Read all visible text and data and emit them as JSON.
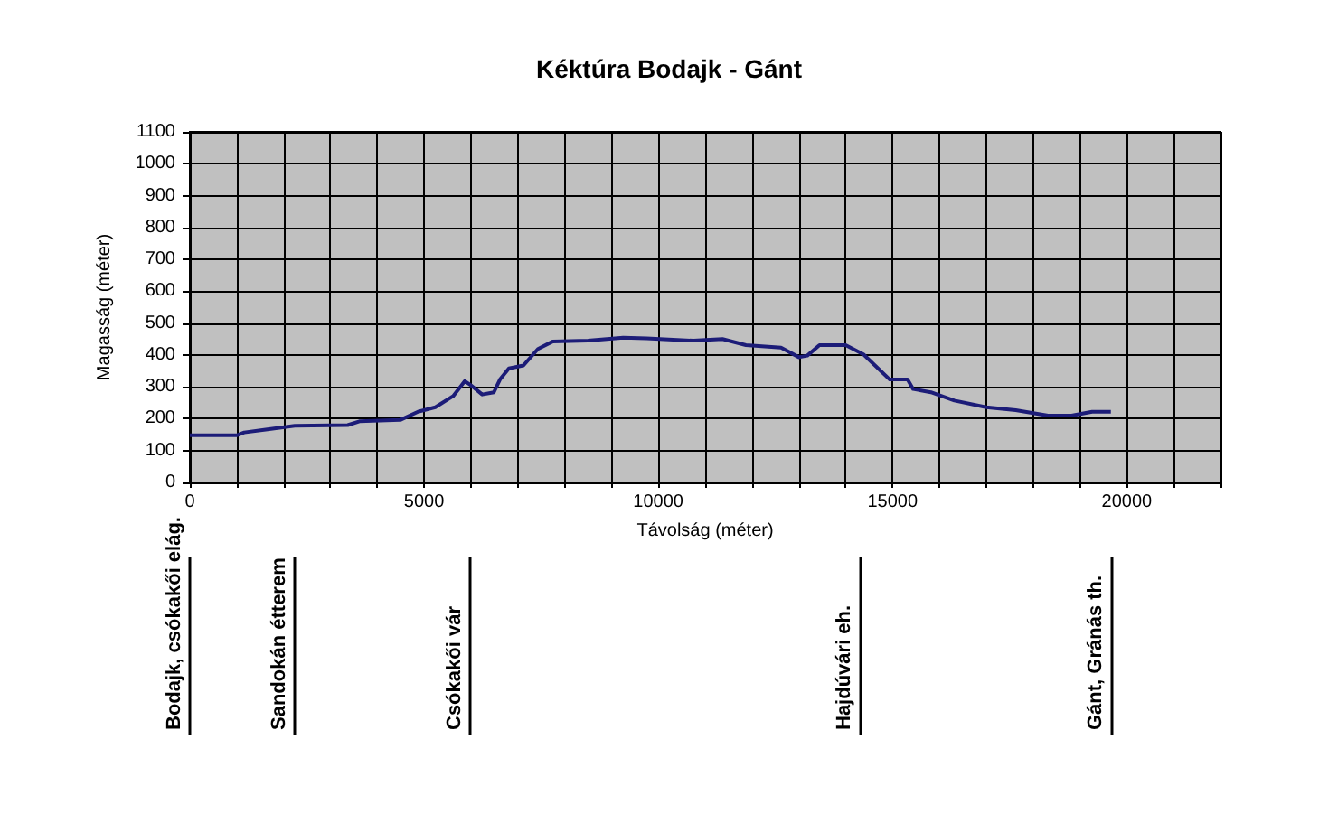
{
  "chart_data": {
    "type": "line",
    "title": "Kéktúra Bodajk - Gánt",
    "xlabel": "Távolság (méter)",
    "ylabel": "Magasság (méter)",
    "x": [
      0,
      1000,
      1160,
      1620,
      2240,
      3370,
      3620,
      4490,
      4870,
      5240,
      5620,
      5870,
      5990,
      6240,
      6490,
      6620,
      6810,
      7120,
      7430,
      7740,
      8500,
      9250,
      9750,
      10750,
      11370,
      11870,
      12620,
      13000,
      13180,
      13440,
      14000,
      14380,
      14940,
      15320,
      15440,
      15820,
      16320,
      17000,
      17630,
      18320,
      18820,
      19260,
      19660
    ],
    "series": [
      {
        "color": "#1c1c78",
        "values": [
          148,
          148,
          157,
          166,
          178,
          180,
          192,
          196,
          222,
          236,
          271,
          318,
          306,
          276,
          283,
          323,
          358,
          367,
          419,
          442,
          445,
          454,
          452,
          445,
          450,
          431,
          423,
          393,
          398,
          431,
          431,
          402,
          323,
          323,
          293,
          283,
          257,
          236,
          227,
          210,
          210,
          222,
          222
        ]
      }
    ],
    "xlim": [
      0,
      22000
    ],
    "xticks": [
      0,
      {
        "value": 1000,
        "label": null
      },
      {
        "value": 2000,
        "label": null
      },
      {
        "value": 3000,
        "label": null
      },
      {
        "value": 4000,
        "label": null
      },
      5000,
      {
        "value": 6000,
        "label": null
      },
      {
        "value": 7000,
        "label": null
      },
      {
        "value": 8000,
        "label": null
      },
      {
        "value": 9000,
        "label": null
      },
      10000,
      {
        "value": 11000,
        "label": null
      },
      {
        "value": 12000,
        "label": null
      },
      {
        "value": 13000,
        "label": null
      },
      {
        "value": 14000,
        "label": null
      },
      15000,
      {
        "value": 16000,
        "label": null
      },
      {
        "value": 17000,
        "label": null
      },
      {
        "value": 18000,
        "label": null
      },
      {
        "value": 19000,
        "label": null
      },
      20000,
      {
        "value": 21000,
        "label": null
      },
      {
        "value": 22000,
        "label": null
      }
    ],
    "ylim": [
      0,
      1100
    ],
    "yticks": [
      0,
      100,
      200,
      300,
      400,
      500,
      600,
      700,
      800,
      900,
      1000,
      1100
    ],
    "grid": true,
    "ref_lines": [
      {
        "axis": "x",
        "value": 0,
        "label": "Bodajk, csókakői elág.",
        "color": "#000000"
      },
      {
        "axis": "x",
        "value": 2240,
        "label": "Sandokán étterem",
        "color": "#000000"
      },
      {
        "axis": "x",
        "value": 5990,
        "label": "Csókakői vár",
        "color": "#000000"
      },
      {
        "axis": "x",
        "value": 14300,
        "label": "Hajdúvári eh.",
        "color": "#000000"
      },
      {
        "axis": "x",
        "value": 19660,
        "label": "Gánt, Gránás th.",
        "color": "#000000"
      }
    ]
  }
}
